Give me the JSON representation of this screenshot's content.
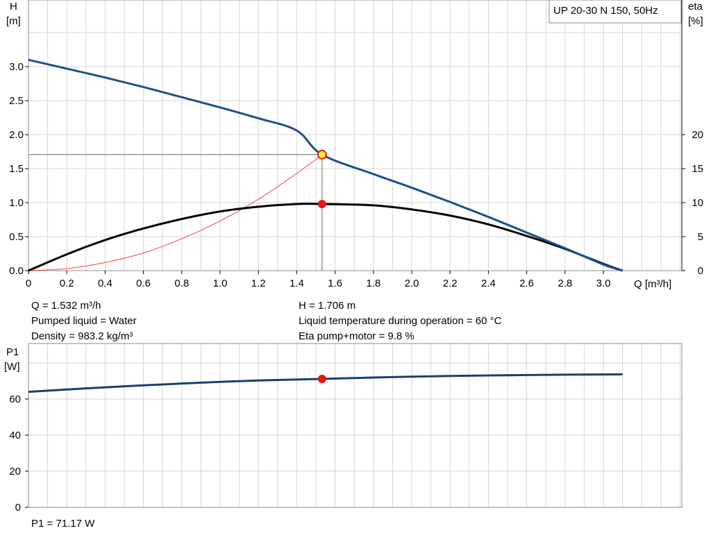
{
  "chart_data": [
    {
      "type": "line",
      "title": "UP 20-30 N 150, 50Hz",
      "xlabel": "Q [m³/h]",
      "ylabel_left": [
        "H",
        "[m]"
      ],
      "ylabel_right": [
        "eta",
        "[%]"
      ],
      "xlim": [
        0,
        3.1
      ],
      "ylim_left": [
        0,
        3.5
      ],
      "ylim_right": [
        0,
        35
      ],
      "x_ticks": [
        "0",
        "0.2",
        "0.4",
        "0.6",
        "0.8",
        "1.0",
        "1.2",
        "1.4",
        "1.6",
        "1.8",
        "2.0",
        "2.2",
        "2.4",
        "2.6",
        "2.8",
        "3.0"
      ],
      "y_ticks_left": [
        "0.0",
        "0.5",
        "1.0",
        "1.5",
        "2.0",
        "2.5",
        "3.0"
      ],
      "y_ticks_right": [
        "0",
        "5",
        "10",
        "15",
        "20"
      ],
      "grid": true,
      "series": [
        {
          "color": "#1f4e8c",
          "axis": "left",
          "x": [
            0,
            0.2,
            0.4,
            0.6,
            0.8,
            1.0,
            1.2,
            1.4,
            1.532,
            1.8,
            2.0,
            2.2,
            2.4,
            2.6,
            2.8,
            3.0,
            3.1
          ],
          "y": [
            3.1,
            2.97,
            2.84,
            2.7,
            2.55,
            2.4,
            2.24,
            2.06,
            1.706,
            1.42,
            1.22,
            1.01,
            0.79,
            0.56,
            0.33,
            0.09,
            0.0
          ]
        },
        {
          "color": "#000000",
          "axis": "right",
          "x": [
            0,
            0.2,
            0.4,
            0.6,
            0.8,
            1.0,
            1.2,
            1.4,
            1.532,
            1.8,
            2.0,
            2.2,
            2.4,
            2.6,
            2.8,
            3.0,
            3.1
          ],
          "y": [
            0,
            2.4,
            4.5,
            6.2,
            7.6,
            8.7,
            9.4,
            9.8,
            9.8,
            9.6,
            9.0,
            8.1,
            6.8,
            5.1,
            3.2,
            1.0,
            0
          ]
        },
        {
          "color": "#ff3b3b",
          "axis": "left",
          "x": [
            0,
            0.2,
            0.4,
            0.6,
            0.8,
            1.0,
            1.2,
            1.4,
            1.532
          ],
          "y": [
            0,
            0.03,
            0.12,
            0.26,
            0.47,
            0.73,
            1.05,
            1.43,
            1.706
          ]
        }
      ],
      "operating_point": {
        "q": 1.532,
        "h": 1.706,
        "eta": 9.8
      }
    },
    {
      "type": "line",
      "ylabel": [
        "P1",
        "[W]"
      ],
      "xlim": [
        0,
        3.1
      ],
      "ylim": [
        0,
        80
      ],
      "y_ticks": [
        "0",
        "20",
        "40",
        "60"
      ],
      "grid": true,
      "series": [
        {
          "color": "#1a3f6e",
          "x": [
            0,
            0.2,
            0.4,
            0.6,
            0.8,
            1.0,
            1.2,
            1.4,
            1.532,
            1.8,
            2.0,
            2.2,
            2.4,
            2.6,
            2.8,
            3.0,
            3.1
          ],
          "y": [
            64.0,
            65.3,
            66.5,
            67.6,
            68.6,
            69.5,
            70.3,
            70.8,
            71.17,
            71.9,
            72.4,
            72.8,
            73.1,
            73.3,
            73.5,
            73.6,
            73.7
          ]
        }
      ],
      "operating_point": {
        "q": 1.532,
        "p1": 71.17
      }
    }
  ],
  "info": {
    "q": "Q = 1.532 m³/h",
    "h": "H = 1.706 m",
    "liquid": "Pumped liquid = Water",
    "temp": "Liquid temperature during operation = 60 °C",
    "density": "Density = 983.2 kg/m³",
    "eta": "Eta pump+motor = 9.8 %",
    "p1": "P1 = 71.17 W"
  }
}
